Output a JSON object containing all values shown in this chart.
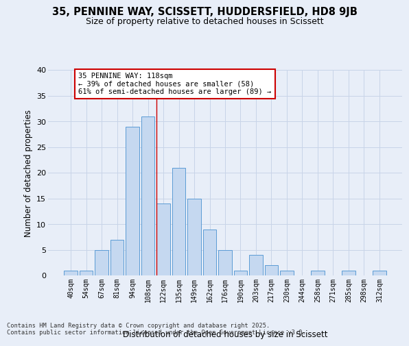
{
  "title_line1": "35, PENNINE WAY, SCISSETT, HUDDERSFIELD, HD8 9JB",
  "title_line2": "Size of property relative to detached houses in Scissett",
  "xlabel": "Distribution of detached houses by size in Scissett",
  "ylabel": "Number of detached properties",
  "bar_labels": [
    "40sqm",
    "54sqm",
    "67sqm",
    "81sqm",
    "94sqm",
    "108sqm",
    "122sqm",
    "135sqm",
    "149sqm",
    "162sqm",
    "176sqm",
    "190sqm",
    "203sqm",
    "217sqm",
    "230sqm",
    "244sqm",
    "258sqm",
    "271sqm",
    "285sqm",
    "298sqm",
    "312sqm"
  ],
  "bar_values": [
    1,
    1,
    5,
    7,
    29,
    31,
    14,
    21,
    15,
    9,
    5,
    1,
    4,
    2,
    1,
    0,
    1,
    0,
    1,
    0,
    1
  ],
  "bar_color": "#c5d8f0",
  "bar_edge_color": "#5b9bd5",
  "vline_color": "#cc0000",
  "annotation_title": "35 PENNINE WAY: 118sqm",
  "annotation_line2": "← 39% of detached houses are smaller (58)",
  "annotation_line3": "61% of semi-detached houses are larger (89) →",
  "annotation_box_facecolor": "#ffffff",
  "annotation_box_edgecolor": "#cc0000",
  "grid_color": "#c8d4e8",
  "background_color": "#e8eef8",
  "ylim": [
    0,
    40
  ],
  "yticks": [
    0,
    5,
    10,
    15,
    20,
    25,
    30,
    35,
    40
  ],
  "footer_line1": "Contains HM Land Registry data © Crown copyright and database right 2025.",
  "footer_line2": "Contains public sector information licensed under the Open Government Licence v3.0."
}
